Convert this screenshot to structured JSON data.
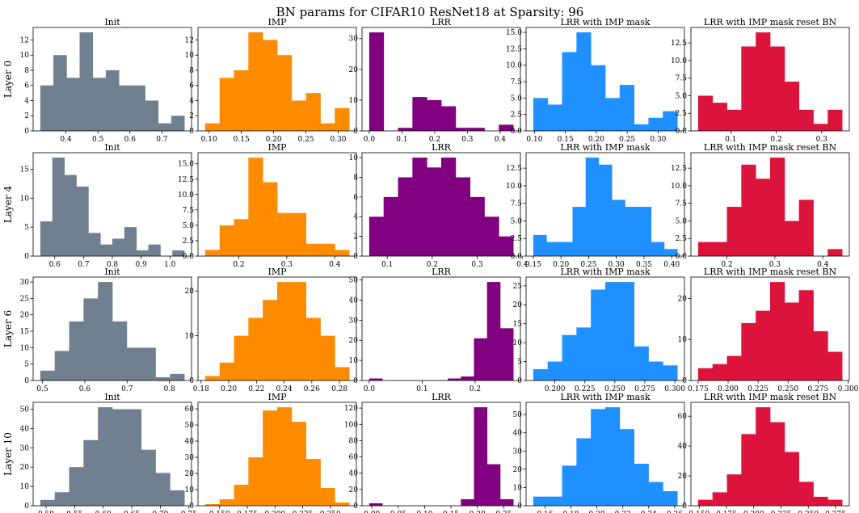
{
  "figure": {
    "title": "BN params for CIFAR10 ResNet18 at Sparsity: 96",
    "rows": [
      "Layer 0",
      "Layer 4",
      "Layer 6",
      "Layer 10"
    ],
    "columns": [
      "Init",
      "IMP",
      "LRR",
      "LRR with IMP mask",
      "LRR with IMP mask reset BN"
    ],
    "colors": [
      "#708090",
      "#ff8c00",
      "#800080",
      "#1e90ff",
      "#dc143c"
    ]
  },
  "chart_data": [
    {
      "type": "bar",
      "row": "Layer 0",
      "title": "Init",
      "bin_range": [
        0.32,
        0.77
      ],
      "counts": [
        6,
        10,
        7,
        13,
        7,
        8,
        6,
        6,
        4,
        1,
        2
      ],
      "xticks": [
        0.4,
        0.5,
        0.6,
        0.7
      ],
      "xticklabels": [
        "0.4",
        "0.5",
        "0.6",
        "0.7"
      ],
      "yticks": [
        0,
        2,
        4,
        6,
        8,
        10,
        12
      ],
      "yticklabels": [
        "0",
        "2",
        "4",
        "6",
        "8",
        "10",
        "12"
      ],
      "ylim": [
        0,
        13.65
      ]
    },
    {
      "type": "bar",
      "row": "Layer 0",
      "title": "IMP",
      "bin_range": [
        0.094,
        0.317
      ],
      "counts": [
        1,
        7,
        8,
        13,
        12,
        10,
        4,
        5,
        1,
        3
      ],
      "xticks": [
        0.1,
        0.15,
        0.2,
        0.25,
        0.3
      ],
      "xticklabels": [
        "0.10",
        "0.15",
        "0.20",
        "0.25",
        "0.30"
      ],
      "yticks": [
        0,
        2,
        4,
        6,
        8,
        10,
        12
      ],
      "yticklabels": [
        "0",
        "2",
        "4",
        "6",
        "8",
        "10",
        "12"
      ],
      "ylim": [
        0,
        13.65
      ]
    },
    {
      "type": "bar",
      "row": "Layer 0",
      "title": "LRR",
      "bin_range": [
        0.0,
        0.44
      ],
      "counts": [
        32,
        0,
        1,
        11,
        10,
        8,
        1,
        1,
        0,
        2
      ],
      "xticks": [
        0.0,
        0.1,
        0.2,
        0.3,
        0.4
      ],
      "xticklabels": [
        "0.0",
        "0.1",
        "0.2",
        "0.3",
        "0.4"
      ],
      "yticks": [
        0,
        10,
        20,
        30
      ],
      "yticklabels": [
        "0",
        "10",
        "20",
        "30"
      ],
      "ylim": [
        0,
        33.6
      ]
    },
    {
      "type": "bar",
      "row": "Layer 0",
      "title": "LRR with IMP mask",
      "bin_range": [
        0.098,
        0.331
      ],
      "counts": [
        5,
        4,
        12,
        15,
        10,
        5,
        7,
        1,
        2,
        3
      ],
      "xticks": [
        0.1,
        0.15,
        0.2,
        0.25,
        0.3
      ],
      "xticklabels": [
        "0.10",
        "0.15",
        "0.20",
        "0.25",
        "0.30"
      ],
      "yticks": [
        0,
        2.5,
        5,
        7.5,
        10,
        12.5,
        15
      ],
      "yticklabels": [
        "0.0",
        "2.5",
        "5.0",
        "7.5",
        "10.0",
        "12.5",
        "15.0"
      ],
      "ylim": [
        0,
        15.75
      ]
    },
    {
      "type": "bar",
      "row": "Layer 0",
      "title": "LRR with IMP mask reset BN",
      "bin_range": [
        0.028,
        0.345
      ],
      "counts": [
        5,
        4,
        3,
        12,
        14,
        12,
        7,
        3,
        1,
        3
      ],
      "xticks": [
        0.1,
        0.2,
        0.3
      ],
      "xticklabels": [
        "0.1",
        "0.2",
        "0.3"
      ],
      "yticks": [
        0,
        2.5,
        5,
        7.5,
        10,
        12.5
      ],
      "yticklabels": [
        "0.0",
        "2.5",
        "5.0",
        "7.5",
        "10.0",
        "12.5"
      ],
      "ylim": [
        0,
        14.7
      ]
    },
    {
      "type": "bar",
      "row": "Layer 4",
      "title": "Init",
      "bin_range": [
        0.55,
        1.05
      ],
      "counts": [
        6,
        17,
        14,
        12,
        4,
        2,
        3,
        5,
        1,
        2,
        0,
        1
      ],
      "xticks": [
        0.6,
        0.7,
        0.8,
        0.9,
        1.0
      ],
      "xticklabels": [
        "0.6",
        "0.7",
        "0.8",
        "0.9",
        "1.0"
      ],
      "yticks": [
        0,
        5,
        10,
        15
      ],
      "yticklabels": [
        "0",
        "5",
        "10",
        "15"
      ],
      "ylim": [
        0,
        17.85
      ]
    },
    {
      "type": "bar",
      "row": "Layer 4",
      "title": "IMP",
      "bin_range": [
        0.13,
        0.43
      ],
      "counts": [
        1,
        5,
        6,
        16,
        12,
        7,
        7,
        2,
        2,
        1
      ],
      "xticks": [
        0.2,
        0.3,
        0.4
      ],
      "xticklabels": [
        "0.2",
        "0.3",
        "0.4"
      ],
      "yticks": [
        0,
        2.5,
        5,
        7.5,
        10,
        12.5,
        15
      ],
      "yticklabels": [
        "0.0",
        "2.5",
        "5.0",
        "7.5",
        "10.0",
        "12.5",
        "15.0"
      ],
      "ylim": [
        0,
        16.8
      ]
    },
    {
      "type": "bar",
      "row": "Layer 4",
      "title": "LRR",
      "bin_range": [
        0.06,
        0.38
      ],
      "counts": [
        4,
        6,
        8,
        10,
        9,
        10,
        8,
        6,
        4,
        2
      ],
      "xticks": [
        0.1,
        0.2,
        0.3,
        0.4
      ],
      "xticklabels": [
        "0.1",
        "0.2",
        "0.3",
        "0.4"
      ],
      "yticks": [
        0,
        2,
        4,
        6,
        8,
        10
      ],
      "yticklabels": [
        "0",
        "2",
        "4",
        "6",
        "8",
        "10"
      ],
      "ylim": [
        0,
        10.5
      ]
    },
    {
      "type": "bar",
      "row": "Layer 4",
      "title": "LRR with IMP mask",
      "bin_range": [
        0.15,
        0.41
      ],
      "counts": [
        3,
        2,
        2,
        7,
        14,
        13,
        8,
        7,
        7,
        2,
        1
      ],
      "xticks": [
        0.15,
        0.2,
        0.25,
        0.3,
        0.35,
        0.4
      ],
      "xticklabels": [
        "0.15",
        "0.20",
        "0.25",
        "0.30",
        "0.35",
        "0.40"
      ],
      "yticks": [
        0,
        2.5,
        5,
        7.5,
        10,
        12.5
      ],
      "yticklabels": [
        "0.0",
        "2.5",
        "5.0",
        "7.5",
        "10.0",
        "12.5"
      ],
      "ylim": [
        0,
        14.7
      ]
    },
    {
      "type": "bar",
      "row": "Layer 4",
      "title": "LRR with IMP mask reset BN",
      "bin_range": [
        0.14,
        0.44
      ],
      "counts": [
        2,
        2,
        7,
        13,
        11,
        14,
        5,
        8,
        0,
        1
      ],
      "xticks": [
        0.2,
        0.3,
        0.4
      ],
      "xticklabels": [
        "0.2",
        "0.3",
        "0.4"
      ],
      "yticks": [
        0,
        2.5,
        5,
        7.5,
        10,
        12.5
      ],
      "yticklabels": [
        "0.0",
        "2.5",
        "5.0",
        "7.5",
        "10.0",
        "12.5"
      ],
      "ylim": [
        0,
        14.7
      ]
    },
    {
      "type": "bar",
      "row": "Layer 6",
      "title": "Init",
      "bin_range": [
        0.495,
        0.835
      ],
      "counts": [
        3,
        9,
        18,
        25,
        30,
        18,
        10,
        10,
        1,
        2
      ],
      "xticks": [
        0.5,
        0.6,
        0.7,
        0.8
      ],
      "xticklabels": [
        "0.5",
        "0.6",
        "0.7",
        "0.8"
      ],
      "yticks": [
        0,
        5,
        10,
        15,
        20,
        25,
        30
      ],
      "yticklabels": [
        "0",
        "5",
        "10",
        "15",
        "20",
        "25",
        "30"
      ],
      "ylim": [
        0,
        31.5
      ]
    },
    {
      "type": "bar",
      "row": "Layer 6",
      "title": "IMP",
      "bin_range": [
        0.183,
        0.287
      ],
      "counts": [
        1,
        4,
        10,
        14,
        18,
        22,
        22,
        14,
        10,
        3
      ],
      "xticks": [
        0.18,
        0.2,
        0.22,
        0.24,
        0.26,
        0.28
      ],
      "xticklabels": [
        "0.18",
        "0.20",
        "0.22",
        "0.24",
        "0.26",
        "0.28"
      ],
      "yticks": [
        0,
        10,
        20
      ],
      "yticklabels": [
        "0",
        "10",
        "20"
      ],
      "ylim": [
        0,
        23.1
      ]
    },
    {
      "type": "bar",
      "row": "Layer 6",
      "title": "LRR",
      "bin_range": [
        0.0,
        0.272
      ],
      "counts": [
        1,
        0,
        0,
        0,
        0,
        0,
        1,
        2,
        21,
        49,
        26
      ],
      "xticks": [
        0.0,
        0.1,
        0.2
      ],
      "xticklabels": [
        "0.0",
        "0.1",
        "0.2"
      ],
      "yticks": [
        0,
        10,
        20,
        30,
        40,
        50
      ],
      "yticklabels": [
        "0",
        "10",
        "20",
        "30",
        "40",
        "50"
      ],
      "ylim": [
        0,
        51.45
      ]
    },
    {
      "type": "bar",
      "row": "Layer 6",
      "title": "LRR with IMP mask",
      "bin_range": [
        0.182,
        0.302
      ],
      "counts": [
        3,
        5,
        12,
        14,
        24,
        26,
        26,
        9,
        5,
        4
      ],
      "xticks": [
        0.2,
        0.225,
        0.25,
        0.275,
        0.3
      ],
      "xticklabels": [
        "0.200",
        "0.225",
        "0.250",
        "0.275",
        "0.300"
      ],
      "yticks": [
        0,
        5,
        10,
        15,
        20,
        25
      ],
      "yticklabels": [
        "0",
        "5",
        "10",
        "15",
        "20",
        "25"
      ],
      "ylim": [
        0,
        27.3
      ]
    },
    {
      "type": "bar",
      "row": "Layer 6",
      "title": "LRR with IMP mask reset BN",
      "bin_range": [
        0.175,
        0.295
      ],
      "counts": [
        3,
        4,
        6,
        14,
        17,
        24,
        19,
        22,
        12,
        7
      ],
      "xticks": [
        0.175,
        0.2,
        0.225,
        0.25,
        0.275,
        0.3
      ],
      "xticklabels": [
        "0.175",
        "0.200",
        "0.225",
        "0.250",
        "0.275",
        "0.300"
      ],
      "yticks": [
        0,
        10,
        20
      ],
      "yticklabels": [
        "0",
        "10",
        "20"
      ],
      "ylim": [
        0,
        25.2
      ]
    },
    {
      "type": "bar",
      "row": "Layer 10",
      "title": "Init",
      "bin_range": [
        0.49,
        0.742
      ],
      "counts": [
        3,
        7,
        20,
        34,
        51,
        50,
        50,
        29,
        17,
        8
      ],
      "xticks": [
        0.5,
        0.55,
        0.6,
        0.65,
        0.7,
        0.75
      ],
      "xticklabels": [
        "0.50",
        "0.55",
        "0.60",
        "0.65",
        "0.70",
        "0.75"
      ],
      "yticks": [
        0,
        10,
        20,
        30,
        40,
        50
      ],
      "yticklabels": [
        "0",
        "10",
        "20",
        "30",
        "40",
        "50"
      ],
      "ylim": [
        0,
        53.55
      ]
    },
    {
      "type": "bar",
      "row": "Layer 10",
      "title": "IMP",
      "bin_range": [
        0.137,
        0.267
      ],
      "counts": [
        1,
        4,
        13,
        30,
        59,
        61,
        52,
        29,
        11,
        2
      ],
      "xticks": [
        0.15,
        0.175,
        0.2,
        0.225,
        0.25
      ],
      "xticklabels": [
        "0.150",
        "0.175",
        "0.200",
        "0.225",
        "0.250"
      ],
      "yticks": [
        0,
        10,
        20,
        30,
        40,
        50,
        60
      ],
      "yticklabels": [
        "0",
        "10",
        "20",
        "30",
        "40",
        "50",
        "60"
      ],
      "ylim": [
        0,
        64.05
      ]
    },
    {
      "type": "bar",
      "row": "Layer 10",
      "title": "LRR",
      "bin_range": [
        -0.005,
        0.268
      ],
      "counts": [
        3,
        0,
        0,
        0,
        0,
        0,
        0,
        8,
        121,
        51,
        8
      ],
      "xticks": [
        0.0,
        0.05,
        0.1,
        0.15,
        0.2,
        0.25
      ],
      "xticklabels": [
        "0.00",
        "0.05",
        "0.10",
        "0.15",
        "0.20",
        "0.25"
      ],
      "yticks": [
        0,
        20,
        40,
        60,
        80,
        100,
        120
      ],
      "yticklabels": [
        "0",
        "20",
        "40",
        "60",
        "80",
        "100",
        "120"
      ],
      "ylim": [
        0,
        127.05
      ]
    },
    {
      "type": "bar",
      "row": "Layer 10",
      "title": "LRR with IMP mask",
      "bin_range": [
        0.151,
        0.262
      ],
      "counts": [
        5,
        5,
        22,
        37,
        53,
        54,
        42,
        23,
        13,
        8
      ],
      "xticks": [
        0.16,
        0.18,
        0.2,
        0.22,
        0.24,
        0.26
      ],
      "xticklabels": [
        "0.16",
        "0.18",
        "0.20",
        "0.22",
        "0.24",
        "0.26"
      ],
      "yticks": [
        0,
        10,
        20,
        30,
        40,
        50
      ],
      "yticklabels": [
        "0",
        "10",
        "20",
        "30",
        "40",
        "50"
      ],
      "ylim": [
        0,
        56.7
      ]
    },
    {
      "type": "bar",
      "row": "Layer 10",
      "title": "LRR with IMP mask reset BN",
      "bin_range": [
        0.149,
        0.281
      ],
      "counts": [
        4,
        9,
        21,
        48,
        66,
        56,
        36,
        16,
        6,
        4
      ],
      "xticks": [
        0.15,
        0.175,
        0.2,
        0.225,
        0.25,
        0.275
      ],
      "xticklabels": [
        "0.150",
        "0.175",
        "0.200",
        "0.225",
        "0.250",
        "0.275"
      ],
      "yticks": [
        0,
        20,
        40,
        60
      ],
      "yticklabels": [
        "0",
        "20",
        "40",
        "60"
      ],
      "ylim": [
        0,
        69.3
      ]
    }
  ]
}
